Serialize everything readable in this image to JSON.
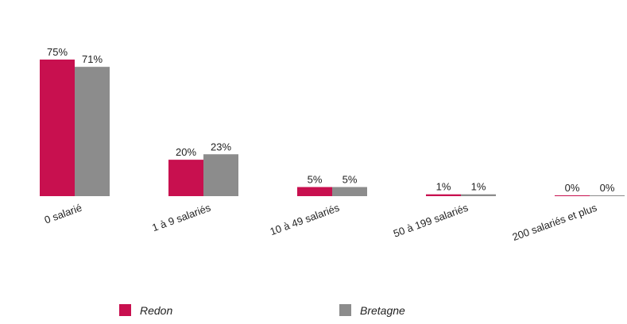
{
  "chart_data": {
    "type": "bar",
    "categories": [
      "0 salarié",
      "1 à 9 salariés",
      "10 à 49 salariés",
      "50 à 199 salariés",
      "200 salariés et plus"
    ],
    "series": [
      {
        "name": "Redon",
        "color": "#c8104f",
        "values": [
          75,
          20,
          5,
          1,
          0
        ],
        "value_labels": [
          "75%",
          "20%",
          "5%",
          "1%",
          "0%"
        ]
      },
      {
        "name": "Bretagne",
        "color": "#8c8c8c",
        "values": [
          71,
          23,
          5,
          1,
          0
        ],
        "value_labels": [
          "71%",
          "23%",
          "5%",
          "1%",
          "0%"
        ]
      }
    ]
  }
}
